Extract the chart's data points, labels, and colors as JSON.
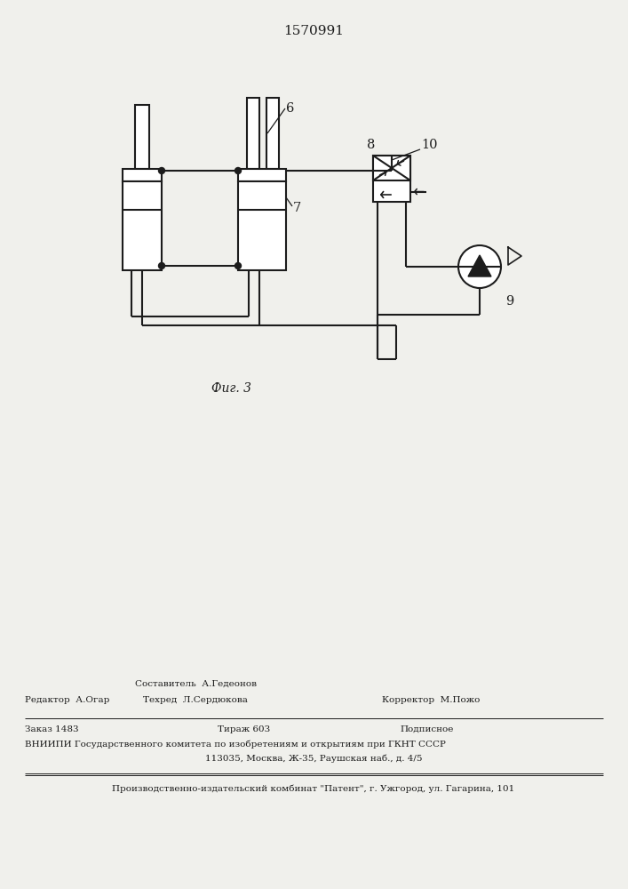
{
  "title": "1570991",
  "fig_label": "Фиг. 3",
  "bg_color": "#f0f0ec",
  "line_color": "#1c1c1c",
  "label_6": "6",
  "label_7": "7",
  "label_8": "8",
  "label_9": "9",
  "label_10": "10",
  "footer_compiler": "Составитель  А.Гедеонов",
  "footer_editor": "Редактор  А.Огар",
  "footer_tech": "Техред  Л.Сердюкова",
  "footer_corrector": "Корректор  М.Пожо",
  "footer_order": "Заказ 1483",
  "footer_tirazh": "Тираж 603",
  "footer_podp": "Подписное",
  "footer_vniip1": "ВНИИПИ Государственного комитета по изобретениям и открытиям при ГКНТ СССР",
  "footer_vniip2": "113035, Москва, Ж-35, Раушская наб., д. 4/5",
  "footer_patent": "Производственно-издательский комбинат \"Патент\", г. Ужгород, ул. Гагарина, 101"
}
